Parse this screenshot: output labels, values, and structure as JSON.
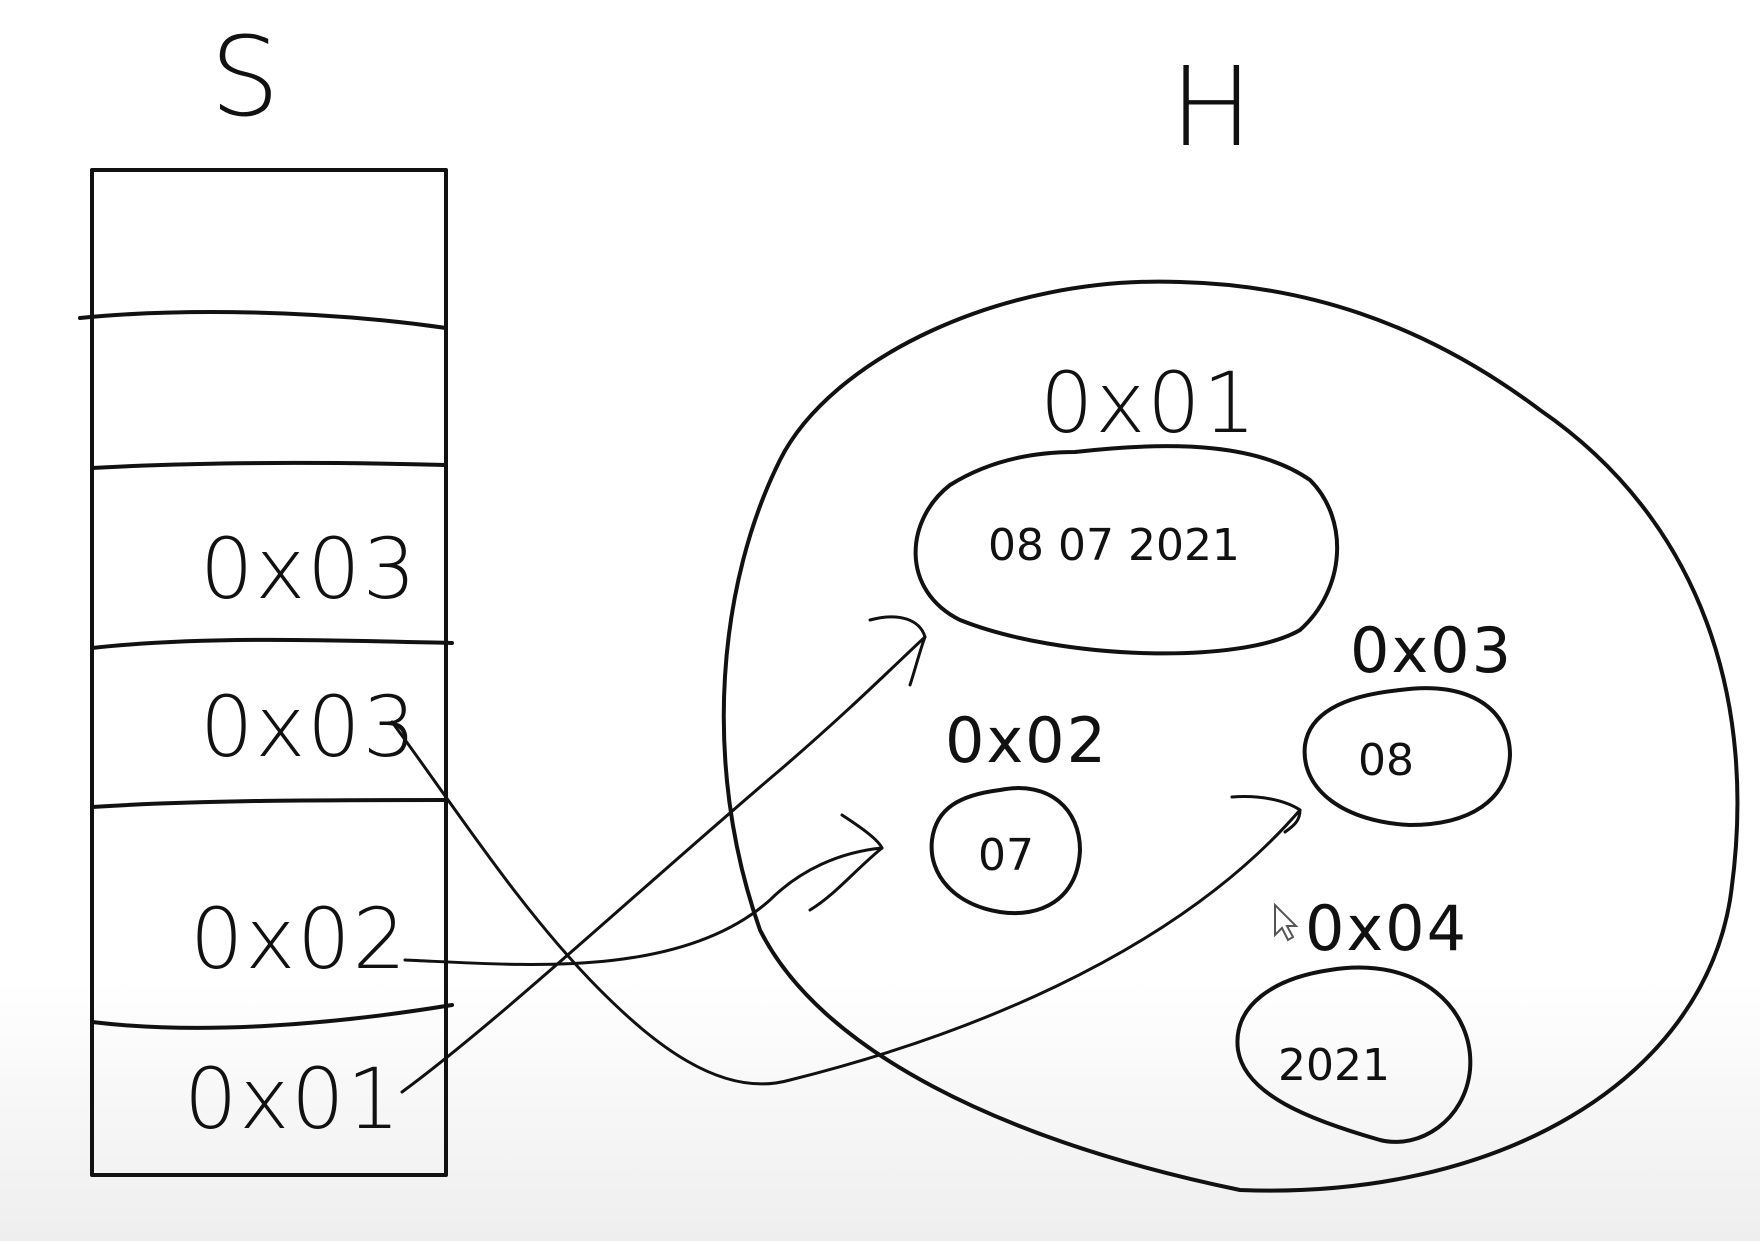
{
  "stack": {
    "title": "S",
    "slots": [
      "0x03",
      "0x03",
      "0x02",
      "0x01"
    ]
  },
  "heap": {
    "title": "H",
    "objects": [
      {
        "address": "0x01",
        "value": "08 07 2021"
      },
      {
        "address": "0x02",
        "value": "07"
      },
      {
        "address": "0x03",
        "value": "08"
      },
      {
        "address": "0x04",
        "value": "2021"
      }
    ]
  }
}
